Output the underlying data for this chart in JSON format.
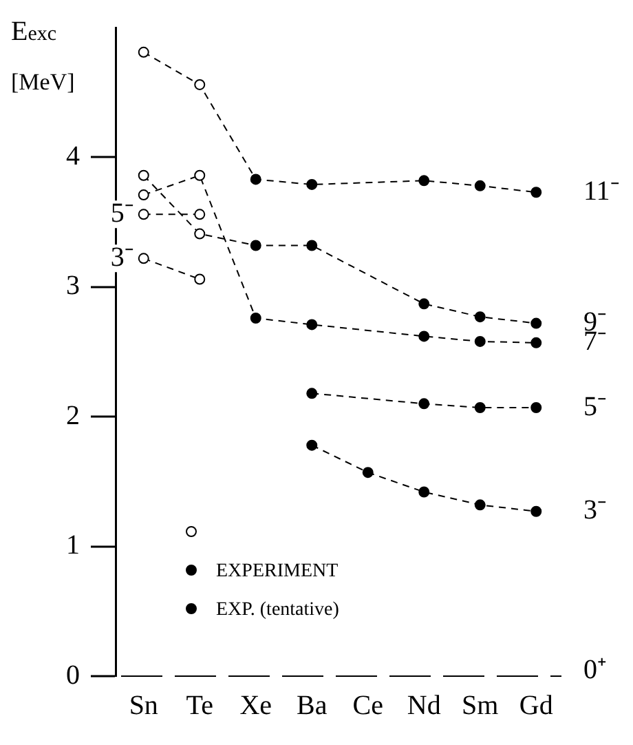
{
  "chart_data": {
    "type": "line",
    "ylabel": "E$_{exc}$ [MeV]",
    "categories": [
      "Sn",
      "Te",
      "Xe",
      "Ba",
      "Ce",
      "Nd",
      "Sm",
      "Gd"
    ],
    "ylim": [
      0,
      5
    ],
    "yticks": [
      0,
      1,
      2,
      3,
      4
    ],
    "grid": false,
    "legend": "bottom left",
    "line_style": "dashed",
    "series": [
      {
        "color": "#000000",
        "values": [
          4.81,
          4.56,
          3.83,
          3.79,
          null,
          3.82,
          3.78,
          3.73
        ]
      },
      {
        "color": "#000000",
        "values": [
          3.86,
          3.41,
          3.32,
          3.32,
          null,
          2.87,
          2.77,
          2.72
        ]
      },
      {
        "color": "#000000",
        "values": [
          3.71,
          3.86,
          2.76,
          2.71,
          null,
          2.62,
          2.58,
          2.57
        ]
      },
      {
        "color": "#000000",
        "values": [
          3.56,
          3.56,
          null,
          null,
          null,
          null,
          null,
          null
        ]
      },
      {
        "color": "#000000",
        "values": [
          3.22,
          3.06,
          null,
          null,
          null,
          null,
          null,
          null
        ]
      },
      {
        "color": "#000000",
        "values": [
          null,
          null,
          null,
          2.18,
          null,
          2.1,
          2.07,
          2.07
        ]
      },
      {
        "color": "#000000",
        "values": [
          null,
          null,
          null,
          1.78,
          1.57,
          1.42,
          1.32,
          1.27
        ]
      },
      {
        "type": "scatter",
        "marker": "circle",
        "color": "#ffffff",
        "x": [
          "Sn",
          "Sn",
          "Sn",
          "Sn",
          "Sn",
          "Te",
          "Te",
          "Te",
          "Te",
          "Te"
        ],
        "values": [
          4.81,
          3.86,
          3.71,
          3.56,
          3.22,
          4.56,
          3.86,
          3.56,
          3.41,
          3.06
        ]
      },
      {
        "type": "scatter",
        "marker": "circle",
        "name": "EXPERIMENT",
        "color": "#000000",
        "x": [
          "Nd",
          "Sm",
          "Gd",
          "Nd",
          "Sm",
          "Gd",
          "Nd",
          "Sm",
          "Gd",
          "Ba",
          "Nd",
          "Sm",
          "Gd",
          "Ba",
          "Ce",
          "Nd",
          "Sm",
          "Gd"
        ],
        "values": [
          3.82,
          3.78,
          3.73,
          2.87,
          2.77,
          2.72,
          2.62,
          2.58,
          2.57,
          2.18,
          2.1,
          2.07,
          2.07,
          1.78,
          1.57,
          1.42,
          1.32,
          1.27
        ]
      },
      {
        "type": "scatter",
        "marker": "circle",
        "name": "EXP. (tentative)",
        "color": "#000000",
        "x": [
          "Xe",
          "Xe",
          "Xe",
          "Ba",
          "Ba",
          "Ba"
        ],
        "values": [
          3.83,
          3.32,
          2.76,
          3.79,
          3.32,
          2.71
        ]
      }
    ],
    "ref_lines": [
      {
        "axis": "y",
        "value": 0,
        "label": "0⁺",
        "line_style": "dashed"
      }
    ],
    "annotations": [
      {
        "text": "11⁻",
        "x": "Gd",
        "y": 3.73
      },
      {
        "text": "9⁻",
        "x": "Gd",
        "y": 2.72
      },
      {
        "text": "7⁻",
        "x": "Gd",
        "y": 2.57
      },
      {
        "text": "5⁻",
        "x": "Gd",
        "y": 2.07
      },
      {
        "text": "3⁻",
        "x": "Gd",
        "y": 1.27
      },
      {
        "text": "5⁻",
        "x": "Sn",
        "y": 3.56
      },
      {
        "text": "3⁻",
        "x": "Sn",
        "y": 3.22
      }
    ]
  }
}
